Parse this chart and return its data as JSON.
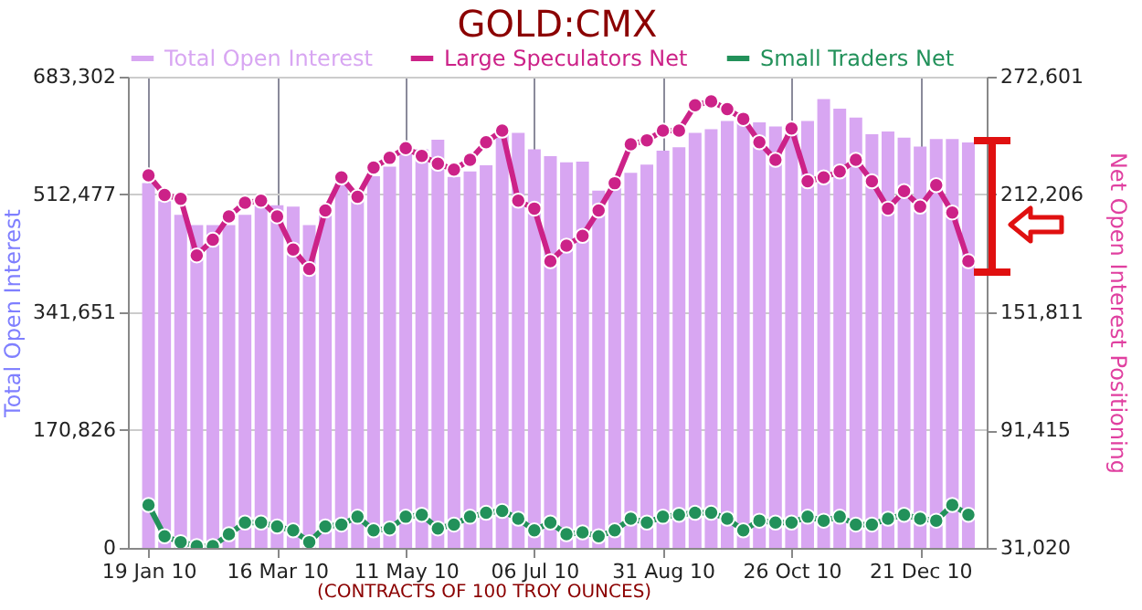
{
  "chart_data": {
    "type": "bar",
    "title": "GOLD:CMX",
    "ylabel": "Total Open Interest",
    "y2label": "Net Open Interest Positioning",
    "x": [
      "2010-01-19",
      "2010-01-26",
      "2010-02-02",
      "2010-02-09",
      "2010-02-16",
      "2010-02-23",
      "2010-03-02",
      "2010-03-09",
      "2010-03-16",
      "2010-03-23",
      "2010-03-30",
      "2010-04-06",
      "2010-04-13",
      "2010-04-20",
      "2010-04-27",
      "2010-05-04",
      "2010-05-11",
      "2010-05-18",
      "2010-05-25",
      "2010-06-01",
      "2010-06-08",
      "2010-06-15",
      "2010-06-22",
      "2010-06-29",
      "2010-07-06",
      "2010-07-13",
      "2010-07-20",
      "2010-07-27",
      "2010-08-03",
      "2010-08-10",
      "2010-08-17",
      "2010-08-24",
      "2010-08-31",
      "2010-09-07",
      "2010-09-14",
      "2010-09-21",
      "2010-09-28",
      "2010-10-05",
      "2010-10-12",
      "2010-10-19",
      "2010-10-26",
      "2010-11-02",
      "2010-11-09",
      "2010-11-16",
      "2010-11-23",
      "2010-11-30",
      "2010-12-07",
      "2010-12-14",
      "2010-12-21",
      "2010-12-28",
      "2011-01-04",
      "2011-01-11"
    ],
    "series": [
      {
        "name": "Total Open Interest",
        "color": "#d8a6f2",
        "values": [
          529000,
          503000,
          483000,
          468000,
          468000,
          468000,
          483000,
          497000,
          497000,
          495000,
          468000,
          497000,
          529000,
          520000,
          539000,
          553000,
          572000,
          578000,
          592000,
          538000,
          546000,
          555000,
          602000,
          602000,
          578000,
          568000,
          559000,
          560000,
          518000,
          523000,
          544000,
          556000,
          576000,
          581000,
          602000,
          607000,
          619000,
          617000,
          617000,
          611000,
          607000,
          619000,
          651000,
          637000,
          624000,
          600000,
          604000,
          595000,
          582000,
          593000,
          593000,
          588000
        ]
      },
      {
        "name": "Large Speculators Net",
        "type": "line",
        "axis": "y2",
        "color": "#cc2288",
        "values": [
          222000,
          212000,
          210000,
          181000,
          189000,
          201000,
          208000,
          209000,
          201000,
          184000,
          174000,
          204000,
          221000,
          211000,
          226000,
          231000,
          236000,
          232000,
          228000,
          225000,
          230000,
          239000,
          245000,
          209000,
          205000,
          178000,
          186000,
          191000,
          204000,
          218000,
          238000,
          240000,
          245000,
          245000,
          258000,
          260000,
          256000,
          251000,
          239000,
          230000,
          246000,
          219000,
          221000,
          224000,
          230000,
          219000,
          205000,
          214000,
          206000,
          217000,
          203000,
          178000
        ]
      },
      {
        "name": "Small Traders Net",
        "type": "line",
        "axis": "y2",
        "color": "#22915a",
        "values": [
          53000,
          37000,
          34000,
          32000,
          32000,
          38000,
          44000,
          44000,
          42000,
          40000,
          34000,
          42000,
          43000,
          47000,
          40000,
          41000,
          47000,
          48000,
          41000,
          43000,
          47000,
          49000,
          50000,
          46000,
          40000,
          44000,
          38000,
          39000,
          37000,
          40000,
          46000,
          44000,
          47000,
          48000,
          49000,
          49000,
          46000,
          40000,
          45000,
          44000,
          44000,
          47000,
          45000,
          47000,
          43000,
          43000,
          46000,
          48000,
          46000,
          45000,
          53000,
          48000
        ]
      }
    ],
    "ylim": [
      0,
      683302
    ],
    "yticks": [
      0,
      {
        "value": 170826,
        "label": "170,826"
      },
      {
        "value": 341651,
        "label": "341,651"
      },
      {
        "value": 512477,
        "label": "512,477"
      },
      {
        "value": 683302,
        "label": "683,302"
      }
    ],
    "y2lim": [
      31020,
      272601
    ],
    "y2ticks": [
      {
        "value": 31020,
        "label": "31,020"
      },
      {
        "value": 91415,
        "label": "91,415"
      },
      {
        "value": 151811,
        "label": "151,811"
      },
      {
        "value": 212206,
        "label": "212,206"
      },
      {
        "value": 272601,
        "label": "272,601"
      }
    ],
    "xlim": [
      "2010-01-14",
      "2011-01-15"
    ],
    "xticks": [
      {
        "value": "2010-01-19",
        "label": "19 Jan 10"
      },
      {
        "value": "2010-03-16",
        "label": "16 Mar 10"
      },
      {
        "value": "2010-05-11",
        "label": "11 May 10"
      },
      {
        "value": "2010-07-06",
        "label": "06 Jul 10"
      },
      {
        "value": "2010-08-31",
        "label": "31 Aug 10"
      },
      {
        "value": "2010-10-26",
        "label": "26 Oct 10"
      },
      {
        "value": "2010-12-21",
        "label": "21 Dec 10"
      }
    ],
    "grid": true,
    "legend": "top",
    "marker": "circle",
    "line_style": "solid",
    "annotations": [
      "(CONTRACTS OF 100 TROY OUNCES)"
    ]
  }
}
